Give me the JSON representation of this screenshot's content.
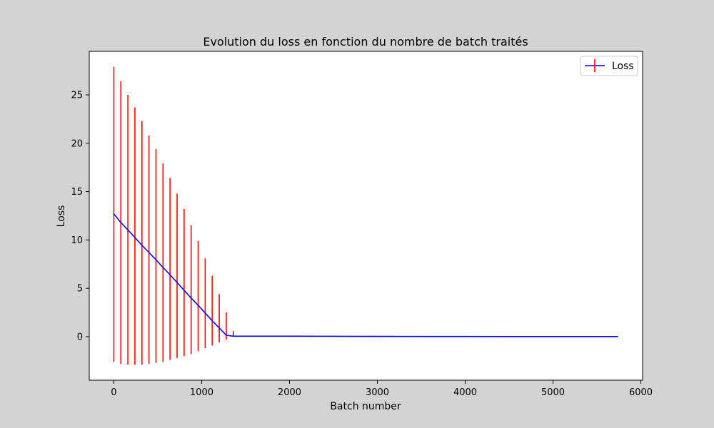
{
  "chart_data": {
    "type": "line",
    "title": "Evolution du loss en fonction du nombre de batch traités",
    "xlabel": "Batch number",
    "ylabel": "Loss",
    "xlim": [
      -280,
      6020
    ],
    "ylim": [
      -4.5,
      29.5
    ],
    "xticks": [
      0,
      1000,
      2000,
      3000,
      4000,
      5000,
      6000
    ],
    "yticks": [
      0,
      5,
      10,
      15,
      20,
      25
    ],
    "grid": false,
    "legend": {
      "placement": "top-right",
      "entries": [
        "Loss"
      ]
    },
    "colors": {
      "line": "#0000ff",
      "errorbar": "#ff0000",
      "background": "#d3d3d3",
      "plot_area": "#ffffff"
    },
    "series": [
      {
        "name": "Loss",
        "x": [
          0,
          80,
          160,
          240,
          320,
          400,
          480,
          560,
          640,
          720,
          800,
          880,
          960,
          1040,
          1120,
          1200,
          1280,
          1360,
          1380,
          1500,
          1700,
          2000,
          2500,
          3000,
          3500,
          4000,
          4500,
          5000,
          5500,
          5740
        ],
        "y": [
          12.7,
          11.8,
          11.05,
          10.25,
          9.45,
          8.7,
          7.95,
          7.15,
          6.4,
          5.6,
          4.8,
          4.0,
          3.25,
          2.45,
          1.65,
          0.9,
          0.15,
          0.05,
          0.05,
          0.05,
          0.05,
          0.05,
          0.04,
          0.03,
          0.02,
          0.02,
          0.01,
          0.01,
          0.01,
          0.01
        ],
        "error_bars": [
          {
            "x": 0,
            "low": -2.6,
            "high": 27.9
          },
          {
            "x": 80,
            "low": -2.8,
            "high": 26.4
          },
          {
            "x": 160,
            "low": -2.9,
            "high": 25.0
          },
          {
            "x": 240,
            "low": -2.9,
            "high": 23.7
          },
          {
            "x": 320,
            "low": -2.9,
            "high": 22.3
          },
          {
            "x": 400,
            "low": -2.8,
            "high": 20.8
          },
          {
            "x": 480,
            "low": -2.7,
            "high": 19.4
          },
          {
            "x": 560,
            "low": -2.6,
            "high": 17.9
          },
          {
            "x": 640,
            "low": -2.4,
            "high": 16.4
          },
          {
            "x": 720,
            "low": -2.2,
            "high": 14.8
          },
          {
            "x": 800,
            "low": -2.0,
            "high": 13.2
          },
          {
            "x": 880,
            "low": -1.8,
            "high": 11.5
          },
          {
            "x": 960,
            "low": -1.5,
            "high": 9.9
          },
          {
            "x": 1040,
            "low": -1.2,
            "high": 8.1
          },
          {
            "x": 1120,
            "low": -0.9,
            "high": 6.3
          },
          {
            "x": 1200,
            "low": -0.6,
            "high": 4.4
          },
          {
            "x": 1280,
            "low": -0.3,
            "high": 2.5
          },
          {
            "x": 1360,
            "low": 0.0,
            "high": 0.6
          }
        ]
      }
    ]
  }
}
